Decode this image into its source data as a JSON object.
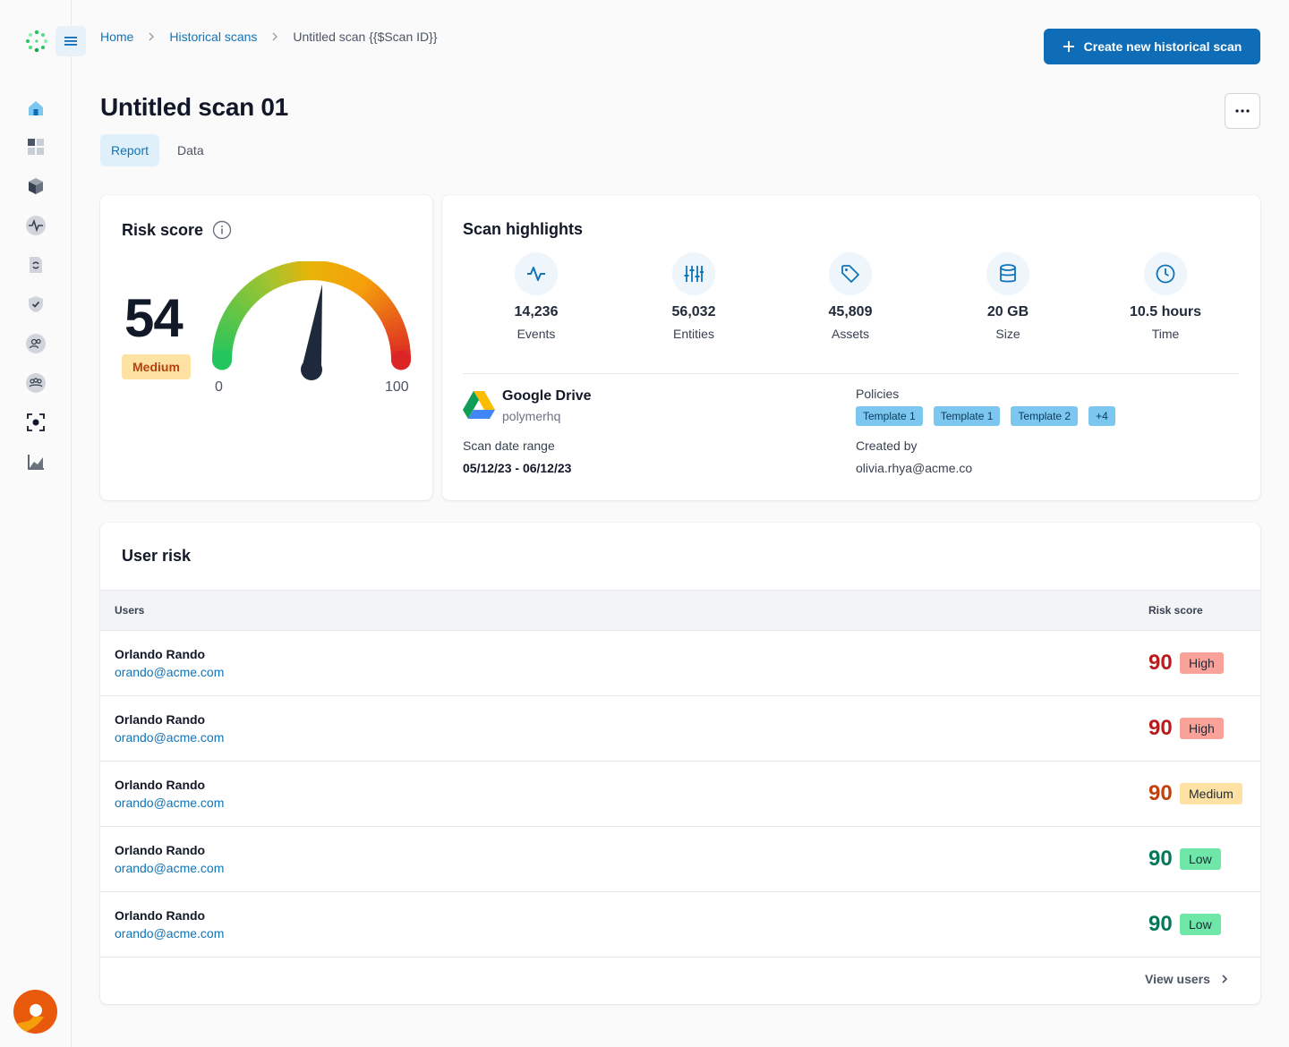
{
  "breadcrumb": {
    "home": "Home",
    "historical_scans": "Historical scans",
    "current": "Untitled scan {{$Scan ID}}"
  },
  "header": {
    "create_button": "Create new historical scan",
    "title": "Untitled scan 01"
  },
  "tabs": {
    "report": "Report",
    "data": "Data"
  },
  "risk_score": {
    "title": "Risk score",
    "value": "54",
    "level": "Medium",
    "gauge_fraction": 0.54,
    "gauge_min": "0",
    "gauge_max": "100"
  },
  "scan_highlights": {
    "title": "Scan highlights",
    "stats": [
      {
        "value": "14,236",
        "label": "Events",
        "icon": "activity-icon"
      },
      {
        "value": "56,032",
        "label": "Entities",
        "icon": "sliders-icon"
      },
      {
        "value": "45,809",
        "label": "Assets",
        "icon": "tag-icon"
      },
      {
        "value": "20 GB",
        "label": "Size",
        "icon": "database-icon"
      },
      {
        "value": "10.5 hours",
        "label": "Time",
        "icon": "clock-icon"
      }
    ],
    "source_name": "Google Drive",
    "source_org": "polymerhq",
    "date_range_label": "Scan date range",
    "date_range_value": "05/12/23 - 06/12/23",
    "policies_label": "Policies",
    "policies": [
      "Template 1",
      "Template 1",
      "Template 2",
      "+4"
    ],
    "created_by_label": "Created by",
    "created_by_value": "olivia.rhya@acme.co"
  },
  "user_risk": {
    "title": "User risk",
    "col_users": "Users",
    "col_risk": "Risk score",
    "rows": [
      {
        "name": "Orlando Rando",
        "email": "orando@acme.com",
        "score": "90",
        "level": "High"
      },
      {
        "name": "Orlando Rando",
        "email": "orando@acme.com",
        "score": "90",
        "level": "High"
      },
      {
        "name": "Orlando Rando",
        "email": "orando@acme.com",
        "score": "90",
        "level": "Medium"
      },
      {
        "name": "Orlando Rando",
        "email": "orando@acme.com",
        "score": "90",
        "level": "Low"
      },
      {
        "name": "Orlando Rando",
        "email": "orando@acme.com",
        "score": "90",
        "level": "Low"
      }
    ],
    "view_users": "View users"
  },
  "colors": {
    "primary": "#0f6cb6",
    "link": "#0f74b8",
    "high_text": "#b91c1c",
    "high_bg": "#f8a29a",
    "medium_text": "#c2410c",
    "medium_bg": "#fde2a4",
    "low_text": "#047857",
    "low_bg": "#6ee7a8"
  }
}
